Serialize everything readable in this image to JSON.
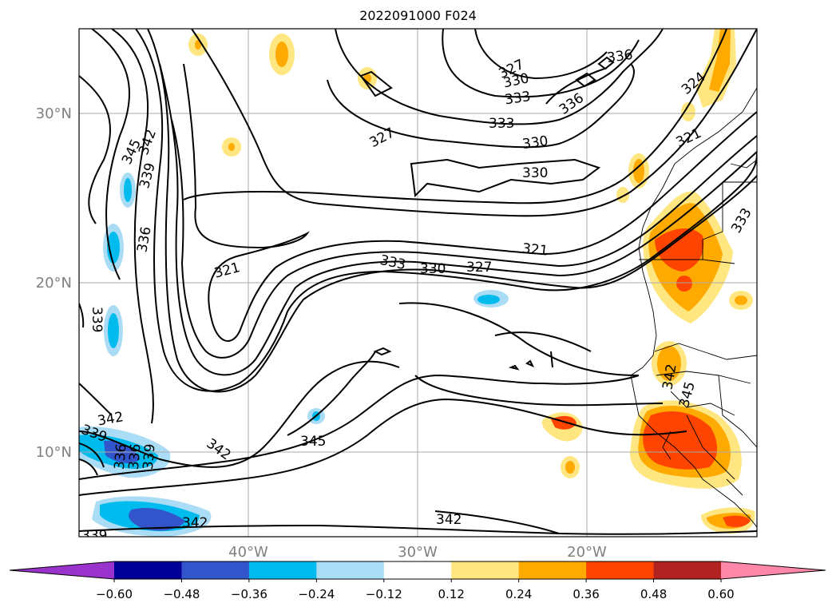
{
  "title": "2022091000 F024",
  "latitude_labels": [
    "30°N",
    "20°N",
    "10°N"
  ],
  "longitude_labels": [
    "40°W",
    "30°W",
    "20°W"
  ],
  "colorbar": {
    "ticks": [
      "−0.60",
      "−0.48",
      "−0.36",
      "−0.24",
      "−0.12",
      "0.12",
      "0.24",
      "0.36",
      "0.48",
      "0.60"
    ],
    "colors": [
      "#9933cc",
      "#000099",
      "#3355cc",
      "#00bbee",
      "#aaddf5",
      "#ffffff",
      "#ffe680",
      "#ffaa00",
      "#ff4400",
      "#b22222",
      "#ff88aa"
    ]
  },
  "contour_labels": [
    {
      "text": "327"
    },
    {
      "text": "330"
    },
    {
      "text": "333"
    },
    {
      "text": "336"
    },
    {
      "text": "336"
    },
    {
      "text": "324"
    },
    {
      "text": "327"
    },
    {
      "text": "333"
    },
    {
      "text": "330"
    },
    {
      "text": "321"
    },
    {
      "text": "330"
    },
    {
      "text": "333"
    },
    {
      "text": "345"
    },
    {
      "text": "342"
    },
    {
      "text": "339"
    },
    {
      "text": "336"
    },
    {
      "text": "321"
    },
    {
      "text": "333"
    },
    {
      "text": "330"
    },
    {
      "text": "327"
    },
    {
      "text": "321"
    },
    {
      "text": "339"
    },
    {
      "text": "342"
    },
    {
      "text": "345"
    },
    {
      "text": "342"
    },
    {
      "text": "339"
    },
    {
      "text": "336"
    },
    {
      "text": "336"
    },
    {
      "text": "339"
    },
    {
      "text": "342"
    },
    {
      "text": "345"
    },
    {
      "text": "342"
    },
    {
      "text": "342"
    },
    {
      "text": "339"
    }
  ]
}
